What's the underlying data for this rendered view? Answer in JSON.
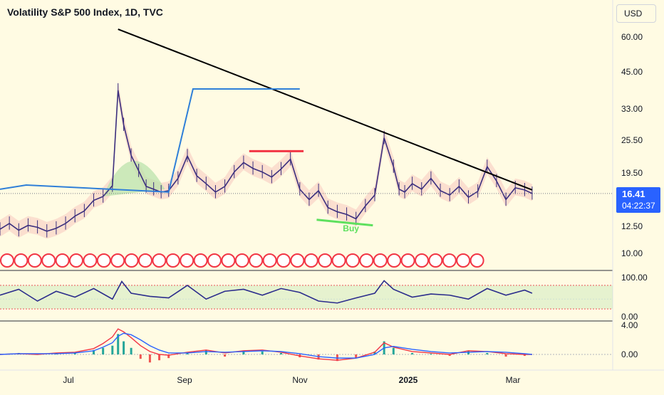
{
  "header": {
    "title": "Volatility S&P 500 Index, 1D, TVC",
    "currency_button": "USD"
  },
  "price_badge": {
    "price": "16.41",
    "countdown": "04:22:37"
  },
  "annotation": {
    "buy_label": "Buy"
  },
  "colors": {
    "background": "#fffbe3",
    "trendline": "#000000",
    "candles": "#3b2f7e",
    "cloud_bear": "#f8c8c0",
    "cloud_bull": "#b7e1a8",
    "ma_blue": "#2f7fd8",
    "resistance_red": "#f23645",
    "support_green": "#5ee05e",
    "oscillator_line": "#2b2c8c",
    "macd_line": "#2962ff",
    "signal_line": "#f23645",
    "hist_up": "#26a69a",
    "hist_down": "#ef5350",
    "price_badge": "#2962ff"
  },
  "chart_data": [
    {
      "type": "line",
      "title": "Volatility S&P 500 Index, 1D, TVC",
      "scale": "log",
      "y_ticks": [
        "60.00",
        "45.00",
        "33.00",
        "25.50",
        "19.50",
        "12.50",
        "10.00"
      ],
      "x_ticks": [
        "Jul",
        "Sep",
        "Nov",
        "2025",
        "Mar"
      ],
      "x_tick_bold": [
        "2025"
      ],
      "ylim": [
        8.8,
        72
      ],
      "x": [
        0,
        5,
        10,
        15,
        20,
        25,
        30,
        35,
        40,
        45,
        50,
        55,
        60,
        63,
        66,
        70,
        74,
        78,
        82,
        86,
        90,
        95,
        100,
        105,
        110,
        115,
        120,
        125,
        130,
        135,
        140,
        145,
        150,
        155,
        160,
        165,
        170,
        175,
        180,
        185,
        190,
        195,
        200,
        205,
        210,
        213,
        216,
        220,
        225,
        230,
        235,
        240,
        245,
        250,
        255,
        260,
        265,
        270,
        275,
        280,
        284
      ],
      "close": [
        12.2,
        12.8,
        12.1,
        12.6,
        12.4,
        12.0,
        12.3,
        12.8,
        13.6,
        14.2,
        15.5,
        16.0,
        17.5,
        38.6,
        29.0,
        22.5,
        19.8,
        17.4,
        17.0,
        16.6,
        16.8,
        18.6,
        22.4,
        19.0,
        17.8,
        16.6,
        17.4,
        19.6,
        21.2,
        20.2,
        19.6,
        18.8,
        20.1,
        21.8,
        17.0,
        15.6,
        16.8,
        14.6,
        14.1,
        13.8,
        13.3,
        14.8,
        16.2,
        26.0,
        20.5,
        17.0,
        16.6,
        17.8,
        17.0,
        18.6,
        16.8,
        16.2,
        17.4,
        15.9,
        16.7,
        20.5,
        18.2,
        15.6,
        17.2,
        16.9,
        16.41
      ],
      "series": [
        {
          "name": "VIX",
          "line_break": null
        }
      ],
      "trendline": {
        "start": {
          "x": 63,
          "y": 64.0
        },
        "end": {
          "x": 284,
          "y": 16.9
        }
      },
      "current_price": 16.41
    },
    {
      "type": "line",
      "y_ticks": [
        "100.00",
        "0.00"
      ],
      "ylim": [
        0,
        100
      ],
      "x": [
        0,
        10,
        20,
        30,
        40,
        50,
        60,
        65,
        70,
        80,
        90,
        100,
        110,
        120,
        130,
        140,
        150,
        160,
        170,
        180,
        190,
        200,
        205,
        210,
        220,
        230,
        240,
        250,
        260,
        270,
        280,
        284
      ],
      "values": [
        55,
        70,
        40,
        65,
        50,
        72,
        45,
        90,
        60,
        52,
        48,
        80,
        45,
        65,
        70,
        55,
        72,
        62,
        40,
        35,
        48,
        60,
        92,
        70,
        50,
        58,
        55,
        45,
        72,
        55,
        68,
        60
      ],
      "bands": [
        20,
        45,
        80
      ]
    },
    {
      "type": "bar",
      "y_ticks": [
        "4.00",
        "0.00"
      ],
      "ylim": [
        -2.5,
        4.5
      ],
      "x": [
        0,
        10,
        20,
        30,
        40,
        50,
        55,
        60,
        63,
        66,
        70,
        75,
        80,
        85,
        90,
        100,
        110,
        120,
        130,
        140,
        150,
        160,
        170,
        180,
        190,
        200,
        205,
        210,
        220,
        230,
        240,
        250,
        260,
        270,
        280,
        284
      ],
      "values": [
        0.1,
        0.2,
        0.1,
        0.2,
        0.3,
        0.6,
        0.9,
        1.2,
        2.8,
        1.8,
        0.9,
        -0.6,
        -1.1,
        -0.8,
        -0.5,
        0.3,
        0.6,
        -0.3,
        0.5,
        0.4,
        0.2,
        -0.4,
        -0.7,
        -0.9,
        -0.5,
        0.4,
        1.8,
        0.9,
        0.2,
        0.1,
        -0.2,
        0.5,
        0.2,
        -0.3,
        -0.2,
        0.0
      ],
      "series": [
        {
          "values": [
            0.0,
            0.1,
            0.0,
            0.2,
            0.3,
            0.8,
            1.5,
            2.4,
            3.5,
            3.1,
            2.3,
            1.2,
            0.4,
            0.0,
            -0.1,
            0.3,
            0.6,
            0.2,
            0.5,
            0.6,
            0.3,
            -0.2,
            -0.6,
            -0.8,
            -0.5,
            0.3,
            1.6,
            1.0,
            0.4,
            0.2,
            0.0,
            0.5,
            0.4,
            0.1,
            0.0,
            0.0
          ]
        },
        {
          "values": [
            0.0,
            0.1,
            0.1,
            0.1,
            0.2,
            0.5,
            1.0,
            1.6,
            2.5,
            2.9,
            2.7,
            2.0,
            1.2,
            0.6,
            0.2,
            0.2,
            0.4,
            0.3,
            0.4,
            0.5,
            0.4,
            0.1,
            -0.3,
            -0.5,
            -0.5,
            0.0,
            0.9,
            1.1,
            0.7,
            0.4,
            0.2,
            0.3,
            0.4,
            0.3,
            0.1,
            0.0
          ]
        }
      ]
    }
  ]
}
